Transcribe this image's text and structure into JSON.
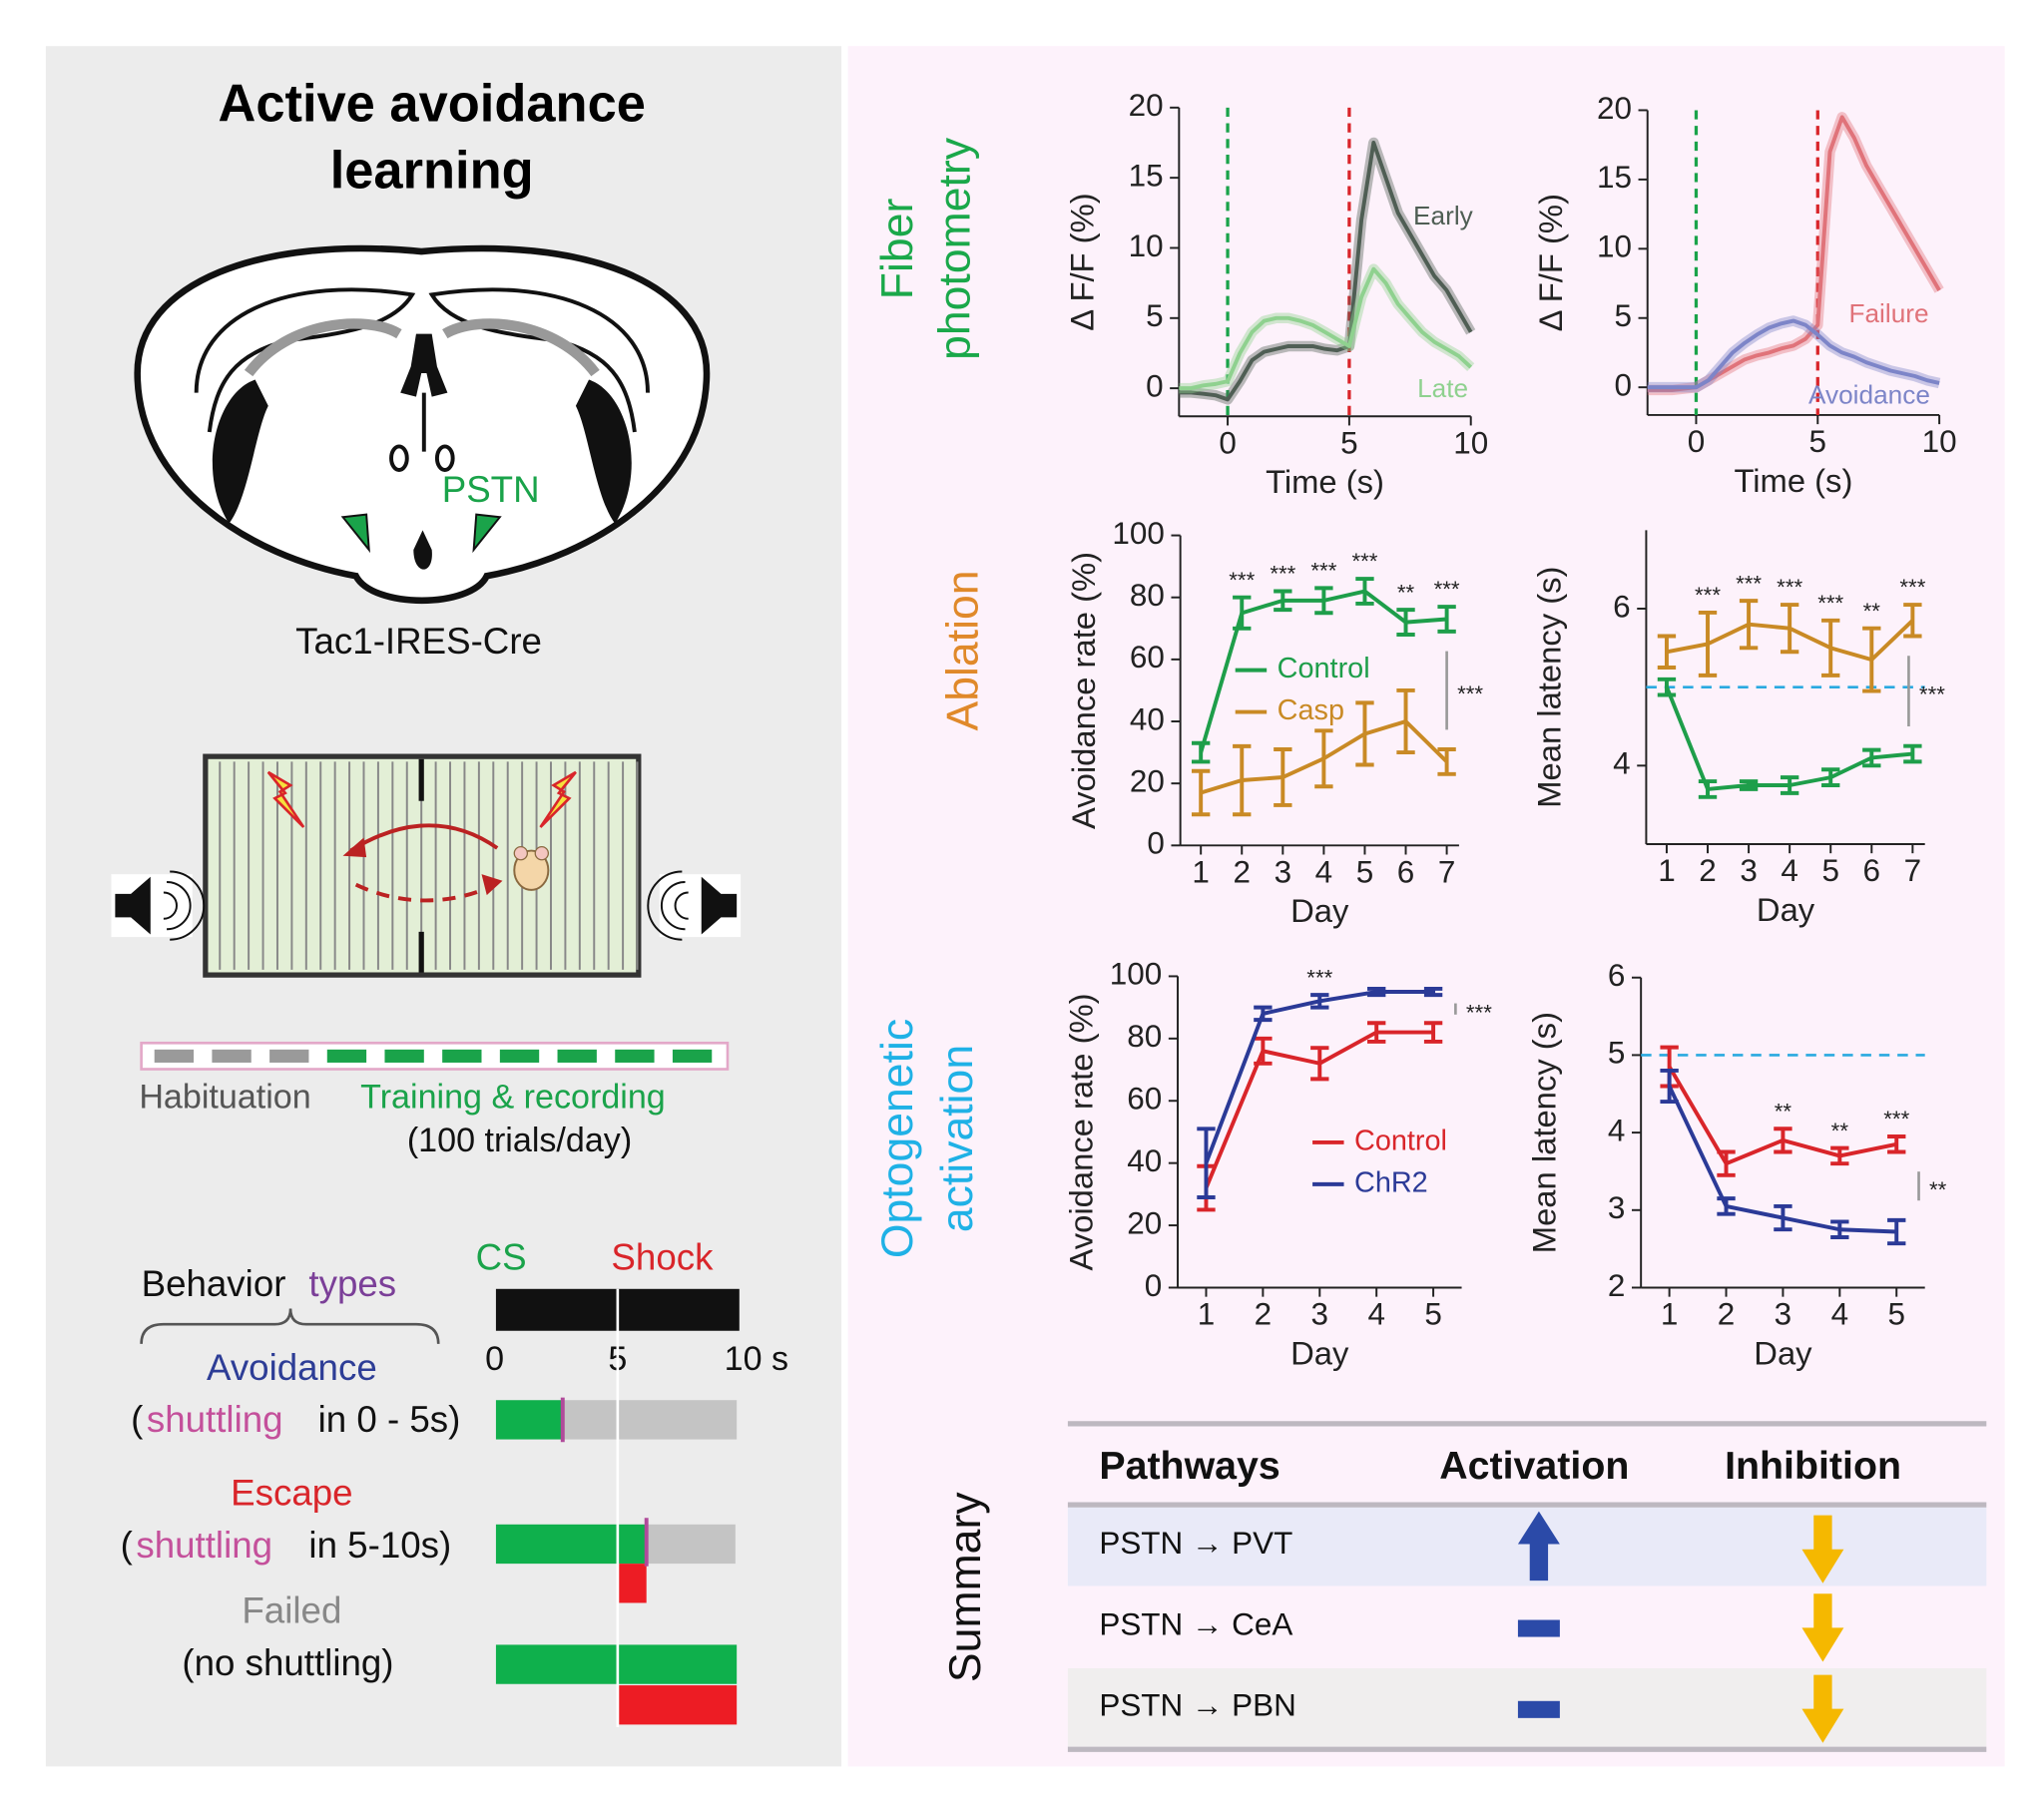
{
  "left_panel": {
    "title": [
      "Active avoidance",
      "learning"
    ],
    "brain_label": "PSTN",
    "mouse_line": "Tac1-IRES-Cre",
    "timeline": {
      "habituation": "Habituation",
      "training": "Training & recording",
      "trials": "(100 trials/day)"
    },
    "behavior": {
      "heading": [
        "Behavior",
        "types"
      ],
      "cs": "CS",
      "shock": "Shock",
      "time_ticks": [
        "0",
        "5",
        "10 s"
      ],
      "types": [
        {
          "name": "Avoidance",
          "desc": [
            "(",
            "shuttling",
            "in 0 - 5s)"
          ]
        },
        {
          "name": "Escape",
          "desc": [
            "(",
            "shuttling",
            "in 5-10s)"
          ]
        },
        {
          "name": "Failed",
          "desc": [
            "(no shuttling)"
          ]
        }
      ]
    }
  },
  "row_labels": [
    [
      "Fiber",
      "photometry"
    ],
    [
      "Ablation"
    ],
    [
      "Optogenetic",
      "activation"
    ]
  ],
  "chart_data": [
    {
      "type": "line",
      "ylabel": "Δ F/F (%)",
      "xlabel": "Time (s)",
      "xlim": [
        -2,
        10
      ],
      "ylim": [
        -2,
        20
      ],
      "xticks": [
        0,
        5,
        10
      ],
      "yticks": [
        0,
        5,
        10,
        15,
        20
      ],
      "x": [
        -2,
        -1.5,
        -1,
        -0.5,
        0,
        0.5,
        1,
        1.5,
        2,
        2.5,
        3,
        3.5,
        4,
        4.5,
        5,
        5.5,
        6,
        6.5,
        7,
        7.5,
        8,
        8.5,
        9,
        9.5,
        10
      ],
      "vlines": [
        {
          "x": 0,
          "color": "#1aa34a"
        },
        {
          "x": 5,
          "color": "#d9252a"
        }
      ],
      "shaded_error": true,
      "series": [
        {
          "name": "Early",
          "color": "#4f5e54",
          "values": [
            -0.3,
            -0.3,
            -0.4,
            -0.5,
            -0.8,
            0.5,
            2,
            2.6,
            2.8,
            3,
            3,
            3,
            2.8,
            2.7,
            3,
            12,
            17.5,
            15,
            12.5,
            11,
            9.5,
            8,
            7,
            5.5,
            4
          ]
        },
        {
          "name": "Late",
          "color": "#8fd18f",
          "values": [
            0,
            0,
            0.2,
            0.3,
            0.5,
            2.5,
            4,
            4.8,
            5,
            5,
            4.8,
            4.5,
            4,
            3.5,
            3,
            6.5,
            8.5,
            7.5,
            6,
            5,
            4,
            3.3,
            2.8,
            2.3,
            1.5
          ]
        }
      ]
    },
    {
      "type": "line",
      "ylabel": "Δ F/F (%)",
      "xlabel": "Time (s)",
      "xlim": [
        -2,
        10
      ],
      "ylim": [
        -2,
        20
      ],
      "xticks": [
        0,
        5,
        10
      ],
      "yticks": [
        0,
        5,
        10,
        15,
        20
      ],
      "x": [
        -2,
        -1.5,
        -1,
        -0.5,
        0,
        0.5,
        1,
        1.5,
        2,
        2.5,
        3,
        3.5,
        4,
        4.5,
        5,
        5.5,
        6,
        6.5,
        7,
        7.5,
        8,
        8.5,
        9,
        9.5,
        10
      ],
      "vlines": [
        {
          "x": 0,
          "color": "#1aa34a"
        },
        {
          "x": 5,
          "color": "#d9252a"
        }
      ],
      "shaded_error": true,
      "series": [
        {
          "name": "Failure",
          "color": "#e0737a",
          "values": [
            -0.2,
            -0.2,
            -0.2,
            -0.1,
            0,
            0.5,
            1,
            1.5,
            2,
            2.3,
            2.5,
            2.8,
            3,
            3.5,
            4.5,
            17,
            19.5,
            18,
            16,
            14.5,
            13,
            11.5,
            10,
            8.5,
            7
          ]
        },
        {
          "name": "Avoidance",
          "color": "#7d85c8",
          "values": [
            0,
            0,
            0,
            0,
            0,
            0.5,
            1.5,
            2.5,
            3.2,
            3.8,
            4.3,
            4.6,
            4.8,
            4.5,
            3.8,
            3,
            2.5,
            2.2,
            1.8,
            1.5,
            1.2,
            1,
            0.8,
            0.5,
            0.3
          ]
        }
      ]
    },
    {
      "type": "line",
      "ylabel": "Avoidance rate (%)",
      "xlabel": "Day",
      "xlim": [
        0.5,
        7.3
      ],
      "ylim": [
        0,
        100
      ],
      "xticks": [
        1,
        2,
        3,
        4,
        5,
        6,
        7
      ],
      "yticks": [
        0,
        20,
        40,
        60,
        80,
        100
      ],
      "x": [
        1,
        2,
        3,
        4,
        5,
        6,
        7
      ],
      "series": [
        {
          "name": "Control",
          "color": "#1e9e4a",
          "values": [
            30,
            75,
            79,
            79,
            82,
            72,
            73
          ],
          "errors": [
            3,
            5,
            3,
            4,
            4,
            4,
            4
          ]
        },
        {
          "name": "Casp",
          "color": "#c98a25",
          "values": [
            17,
            21,
            22,
            28,
            36,
            40,
            27
          ],
          "errors": [
            7,
            11,
            9,
            9,
            10,
            10,
            4
          ]
        }
      ],
      "annotations": [
        {
          "x": 2,
          "text": "***"
        },
        {
          "x": 3,
          "text": "***"
        },
        {
          "x": 4,
          "text": "***"
        },
        {
          "x": 5,
          "text": "***"
        },
        {
          "x": 6,
          "text": "**"
        },
        {
          "x": 7,
          "text": "***"
        }
      ],
      "significance": "***",
      "legend": true
    },
    {
      "type": "line",
      "ylabel": "Mean latency (s)",
      "xlabel": "Day",
      "xlim": [
        0.5,
        7.3
      ],
      "ylim": [
        3,
        7
      ],
      "xticks": [
        1,
        2,
        3,
        4,
        5,
        6,
        7
      ],
      "yticks": [
        4,
        6
      ],
      "x": [
        1,
        2,
        3,
        4,
        5,
        6,
        7
      ],
      "hline": 5,
      "series": [
        {
          "name": "Casp",
          "color": "#c98a25",
          "values": [
            5.45,
            5.55,
            5.8,
            5.75,
            5.5,
            5.35,
            5.85
          ],
          "errors": [
            0.2,
            0.4,
            0.3,
            0.3,
            0.35,
            0.4,
            0.2
          ]
        },
        {
          "name": "Control",
          "color": "#1e9e4a",
          "values": [
            5.0,
            3.7,
            3.75,
            3.75,
            3.85,
            4.1,
            4.15
          ],
          "errors": [
            0.1,
            0.1,
            0.05,
            0.1,
            0.1,
            0.1,
            0.1
          ]
        }
      ],
      "annotations": [
        {
          "x": 2,
          "text": "***"
        },
        {
          "x": 3,
          "text": "***"
        },
        {
          "x": 4,
          "text": "***"
        },
        {
          "x": 5,
          "text": "***"
        },
        {
          "x": 6,
          "text": "**"
        },
        {
          "x": 7,
          "text": "***"
        }
      ],
      "significance": "***",
      "legend": false
    },
    {
      "type": "line",
      "ylabel": "Avoidance rate (%)",
      "xlabel": "Day",
      "xlim": [
        0.5,
        5.5
      ],
      "ylim": [
        0,
        100
      ],
      "xticks": [
        1,
        2,
        3,
        4,
        5
      ],
      "yticks": [
        0,
        20,
        40,
        60,
        80,
        100
      ],
      "x": [
        1,
        2,
        3,
        4,
        5
      ],
      "series": [
        {
          "name": "Control",
          "color": "#d9252a",
          "values": [
            32,
            76,
            72,
            82,
            82
          ],
          "errors": [
            7,
            4,
            5,
            3,
            3
          ]
        },
        {
          "name": "ChR2",
          "color": "#2b3a97",
          "values": [
            40,
            88,
            92,
            95,
            95
          ],
          "errors": [
            11,
            2,
            2,
            1,
            1
          ]
        }
      ],
      "annotations": [
        {
          "x": 3,
          "text": "***"
        }
      ],
      "significance": "***",
      "legend": true
    },
    {
      "type": "line",
      "ylabel": "Mean latency (s)",
      "xlabel": "Day",
      "xlim": [
        0.5,
        5.5
      ],
      "ylim": [
        2,
        6
      ],
      "xticks": [
        1,
        2,
        3,
        4,
        5
      ],
      "yticks": [
        2,
        3,
        4,
        5,
        6
      ],
      "x": [
        1,
        2,
        3,
        4,
        5
      ],
      "hline": 5,
      "series": [
        {
          "name": "Control",
          "color": "#d9252a",
          "values": [
            4.85,
            3.6,
            3.9,
            3.7,
            3.85
          ],
          "errors": [
            0.25,
            0.15,
            0.15,
            0.1,
            0.1
          ]
        },
        {
          "name": "ChR2",
          "color": "#2b3a97",
          "values": [
            4.6,
            3.05,
            2.9,
            2.75,
            2.72
          ],
          "errors": [
            0.2,
            0.1,
            0.15,
            0.1,
            0.15
          ]
        }
      ],
      "annotations": [
        {
          "x": 3,
          "text": "**"
        },
        {
          "x": 4,
          "text": "**"
        },
        {
          "x": 5,
          "text": "***"
        }
      ],
      "significance": "**",
      "legend": false
    }
  ],
  "summary": {
    "label": "Summary",
    "headers": [
      "Pathways",
      "Activation",
      "Inhibition"
    ],
    "rows": [
      "PSTN → PVT",
      "PSTN → CeA",
      "PSTN → PBN"
    ]
  }
}
